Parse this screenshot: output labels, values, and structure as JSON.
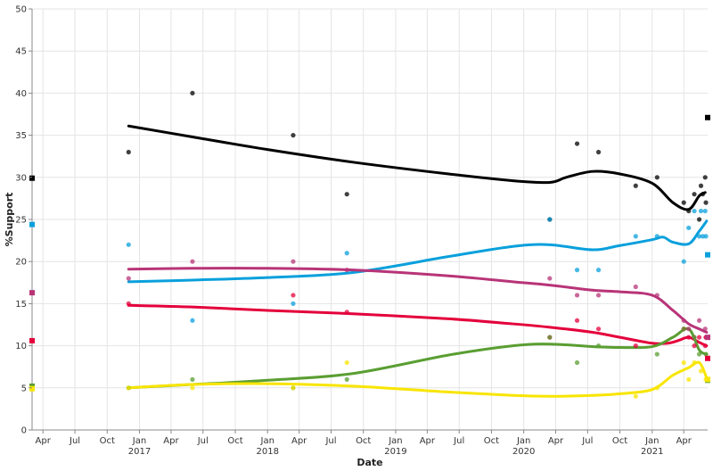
{
  "chart_data": {
    "type": "scatter",
    "title": "",
    "xlabel": "Date",
    "ylabel": "%Support",
    "ylim": [
      0,
      50
    ],
    "y_ticks": [
      0,
      5,
      10,
      15,
      20,
      25,
      30,
      35,
      40,
      45,
      50
    ],
    "xlim": [
      "2016-03-01",
      "2021-06-08"
    ],
    "x_ticks": [
      {
        "date": "2016-04-01",
        "label": "Apr"
      },
      {
        "date": "2016-07-01",
        "label": "Jul"
      },
      {
        "date": "2016-10-01",
        "label": "Oct"
      },
      {
        "date": "2017-01-01",
        "label": "Jan",
        "year": "2017"
      },
      {
        "date": "2017-04-01",
        "label": "Apr"
      },
      {
        "date": "2017-07-01",
        "label": "Jul"
      },
      {
        "date": "2017-10-01",
        "label": "Oct"
      },
      {
        "date": "2018-01-01",
        "label": "Jan",
        "year": "2018"
      },
      {
        "date": "2018-04-01",
        "label": "Apr"
      },
      {
        "date": "2018-07-01",
        "label": "Jul"
      },
      {
        "date": "2018-10-01",
        "label": "Oct"
      },
      {
        "date": "2019-01-01",
        "label": "Jan",
        "year": "2019"
      },
      {
        "date": "2019-04-01",
        "label": "Apr"
      },
      {
        "date": "2019-07-01",
        "label": "Jul"
      },
      {
        "date": "2019-10-01",
        "label": "Oct"
      },
      {
        "date": "2020-01-01",
        "label": "Jan",
        "year": "2020"
      },
      {
        "date": "2020-04-01",
        "label": "Apr"
      },
      {
        "date": "2020-07-01",
        "label": "Jul"
      },
      {
        "date": "2020-10-01",
        "label": "Oct"
      },
      {
        "date": "2021-01-01",
        "label": "Jan",
        "year": "2021"
      },
      {
        "date": "2021-04-01",
        "label": "Apr"
      }
    ],
    "grid": true,
    "series": [
      {
        "color": "#000000",
        "start_value": 29.9,
        "end_value": 37.1,
        "trend": [
          [
            "2016-12-01",
            36.1
          ],
          [
            "2017-06-01",
            34.8
          ],
          [
            "2018-01-01",
            33.3
          ],
          [
            "2018-09-01",
            31.8
          ],
          [
            "2019-06-01",
            30.4
          ],
          [
            "2019-12-01",
            29.6
          ],
          [
            "2020-03-15",
            29.4
          ],
          [
            "2020-05-01",
            30.0
          ],
          [
            "2020-07-15",
            30.7
          ],
          [
            "2020-10-01",
            30.4
          ],
          [
            "2021-01-01",
            29.3
          ],
          [
            "2021-03-01",
            27.0
          ],
          [
            "2021-04-15",
            26.2
          ],
          [
            "2021-05-15",
            27.8
          ],
          [
            "2021-06-01",
            28.2
          ]
        ],
        "points": [
          [
            "2016-12-01",
            33
          ],
          [
            "2017-06-01",
            40
          ],
          [
            "2018-03-15",
            35
          ],
          [
            "2018-08-15",
            28
          ],
          [
            "2020-03-15",
            25
          ],
          [
            "2020-06-01",
            34
          ],
          [
            "2020-08-01",
            33
          ],
          [
            "2020-11-15",
            29
          ],
          [
            "2021-01-15",
            30
          ],
          [
            "2021-04-01",
            27
          ],
          [
            "2021-04-15",
            26
          ],
          [
            "2021-05-01",
            28
          ],
          [
            "2021-05-15",
            25
          ],
          [
            "2021-05-20",
            29
          ],
          [
            "2021-05-25",
            28
          ],
          [
            "2021-06-01",
            30
          ],
          [
            "2021-06-03",
            27
          ]
        ]
      },
      {
        "color": "#0aa0dc",
        "start_value": 24.4,
        "end_value": 20.8,
        "trend": [
          [
            "2016-12-01",
            17.6
          ],
          [
            "2017-06-01",
            17.8
          ],
          [
            "2018-01-01",
            18.1
          ],
          [
            "2018-09-01",
            18.7
          ],
          [
            "2019-06-01",
            20.6
          ],
          [
            "2019-12-01",
            21.8
          ],
          [
            "2020-03-15",
            22.0
          ],
          [
            "2020-07-15",
            21.4
          ],
          [
            "2020-10-01",
            21.9
          ],
          [
            "2021-01-01",
            22.6
          ],
          [
            "2021-02-01",
            22.9
          ],
          [
            "2021-03-01",
            22.3
          ],
          [
            "2021-04-15",
            22.1
          ],
          [
            "2021-05-15",
            23.6
          ],
          [
            "2021-06-05",
            24.8
          ]
        ],
        "points": [
          [
            "2016-12-01",
            22
          ],
          [
            "2017-06-01",
            13
          ],
          [
            "2018-03-15",
            15
          ],
          [
            "2018-08-15",
            21
          ],
          [
            "2020-03-15",
            25
          ],
          [
            "2020-06-01",
            19
          ],
          [
            "2020-08-01",
            19
          ],
          [
            "2020-11-15",
            23
          ],
          [
            "2021-01-15",
            23
          ],
          [
            "2021-04-01",
            20
          ],
          [
            "2021-04-15",
            24
          ],
          [
            "2021-05-01",
            26
          ],
          [
            "2021-05-15",
            23
          ],
          [
            "2021-05-20",
            26
          ],
          [
            "2021-05-25",
            23
          ],
          [
            "2021-06-01",
            26
          ],
          [
            "2021-06-03",
            23
          ]
        ]
      },
      {
        "color": "#b83478",
        "start_value": 16.3,
        "end_value": 11.0,
        "trend": [
          [
            "2016-12-01",
            19.1
          ],
          [
            "2017-06-01",
            19.2
          ],
          [
            "2018-01-01",
            19.2
          ],
          [
            "2018-09-01",
            19.0
          ],
          [
            "2019-06-01",
            18.3
          ],
          [
            "2019-12-01",
            17.6
          ],
          [
            "2020-03-15",
            17.2
          ],
          [
            "2020-07-15",
            16.6
          ],
          [
            "2020-10-01",
            16.4
          ],
          [
            "2021-01-01",
            16.0
          ],
          [
            "2021-03-01",
            14.2
          ],
          [
            "2021-04-15",
            12.6
          ],
          [
            "2021-05-15",
            12.0
          ],
          [
            "2021-06-05",
            11.6
          ]
        ],
        "points": [
          [
            "2016-12-01",
            18
          ],
          [
            "2017-06-01",
            20
          ],
          [
            "2018-03-15",
            20
          ],
          [
            "2018-08-15",
            19
          ],
          [
            "2020-03-15",
            18
          ],
          [
            "2020-06-01",
            16
          ],
          [
            "2020-08-01",
            16
          ],
          [
            "2020-11-15",
            17
          ],
          [
            "2021-01-15",
            16
          ],
          [
            "2021-04-01",
            13
          ],
          [
            "2021-04-15",
            12
          ],
          [
            "2021-05-01",
            11
          ],
          [
            "2021-05-15",
            13
          ],
          [
            "2021-06-01",
            12
          ],
          [
            "2021-06-03",
            11
          ]
        ]
      },
      {
        "color": "#e4003b",
        "start_value": 10.6,
        "end_value": 8.5,
        "trend": [
          [
            "2016-12-01",
            14.8
          ],
          [
            "2017-06-01",
            14.6
          ],
          [
            "2018-01-01",
            14.2
          ],
          [
            "2018-09-01",
            13.8
          ],
          [
            "2019-06-01",
            13.2
          ],
          [
            "2019-12-01",
            12.6
          ],
          [
            "2020-03-15",
            12.2
          ],
          [
            "2020-07-15",
            11.6
          ],
          [
            "2020-10-01",
            11.0
          ],
          [
            "2021-01-01",
            10.3
          ],
          [
            "2021-02-15",
            10.3
          ],
          [
            "2021-03-15",
            10.6
          ],
          [
            "2021-04-15",
            11.0
          ],
          [
            "2021-05-15",
            10.4
          ],
          [
            "2021-06-05",
            10.0
          ]
        ],
        "points": [
          [
            "2016-12-01",
            15
          ],
          [
            "2018-03-15",
            16
          ],
          [
            "2018-08-15",
            14
          ],
          [
            "2020-03-15",
            11
          ],
          [
            "2020-06-01",
            13
          ],
          [
            "2020-08-01",
            12
          ],
          [
            "2020-11-15",
            10
          ],
          [
            "2021-04-01",
            12
          ],
          [
            "2021-04-15",
            11
          ],
          [
            "2021-05-01",
            10
          ],
          [
            "2021-05-15",
            11
          ],
          [
            "2021-06-01",
            10
          ],
          [
            "2021-06-03",
            11
          ]
        ]
      },
      {
        "color": "#5a9e32",
        "start_value": 5.2,
        "end_value": 5.9,
        "trend": [
          [
            "2016-12-01",
            5.0
          ],
          [
            "2017-06-01",
            5.4
          ],
          [
            "2018-01-01",
            5.9
          ],
          [
            "2018-09-01",
            6.7
          ],
          [
            "2019-06-01",
            8.9
          ],
          [
            "2019-12-01",
            10.0
          ],
          [
            "2020-03-15",
            10.2
          ],
          [
            "2020-07-15",
            9.9
          ],
          [
            "2020-10-01",
            9.8
          ],
          [
            "2021-01-01",
            9.9
          ],
          [
            "2021-03-01",
            11.0
          ],
          [
            "2021-04-15",
            12.0
          ],
          [
            "2021-05-15",
            9.5
          ],
          [
            "2021-06-05",
            9.0
          ]
        ],
        "points": [
          [
            "2016-12-01",
            5
          ],
          [
            "2017-06-01",
            6
          ],
          [
            "2018-03-15",
            5
          ],
          [
            "2018-08-15",
            6
          ],
          [
            "2020-03-15",
            11
          ],
          [
            "2020-06-01",
            8
          ],
          [
            "2020-08-01",
            10
          ],
          [
            "2021-01-15",
            9
          ],
          [
            "2021-04-01",
            12
          ],
          [
            "2021-05-01",
            11
          ],
          [
            "2021-05-15",
            9
          ],
          [
            "2021-06-03",
            9
          ]
        ]
      },
      {
        "color": "#f8e500",
        "start_value": 4.9,
        "end_value": 6.0,
        "trend": [
          [
            "2016-12-01",
            5.0
          ],
          [
            "2017-06-01",
            5.4
          ],
          [
            "2018-01-01",
            5.5
          ],
          [
            "2018-09-01",
            5.2
          ],
          [
            "2019-06-01",
            4.5
          ],
          [
            "2019-12-01",
            4.1
          ],
          [
            "2020-03-15",
            4.0
          ],
          [
            "2020-07-15",
            4.1
          ],
          [
            "2020-10-01",
            4.3
          ],
          [
            "2021-01-01",
            4.8
          ],
          [
            "2021-03-01",
            6.5
          ],
          [
            "2021-04-15",
            7.4
          ],
          [
            "2021-05-15",
            8.0
          ],
          [
            "2021-06-05",
            6.2
          ]
        ],
        "points": [
          [
            "2016-12-01",
            5
          ],
          [
            "2017-06-01",
            5
          ],
          [
            "2018-03-15",
            5
          ],
          [
            "2018-08-15",
            8
          ],
          [
            "2020-11-15",
            4
          ],
          [
            "2021-01-15",
            5
          ],
          [
            "2021-04-01",
            8
          ],
          [
            "2021-04-15",
            6
          ],
          [
            "2021-05-01",
            8
          ],
          [
            "2021-05-20",
            7
          ],
          [
            "2021-06-03",
            6
          ]
        ]
      }
    ]
  }
}
